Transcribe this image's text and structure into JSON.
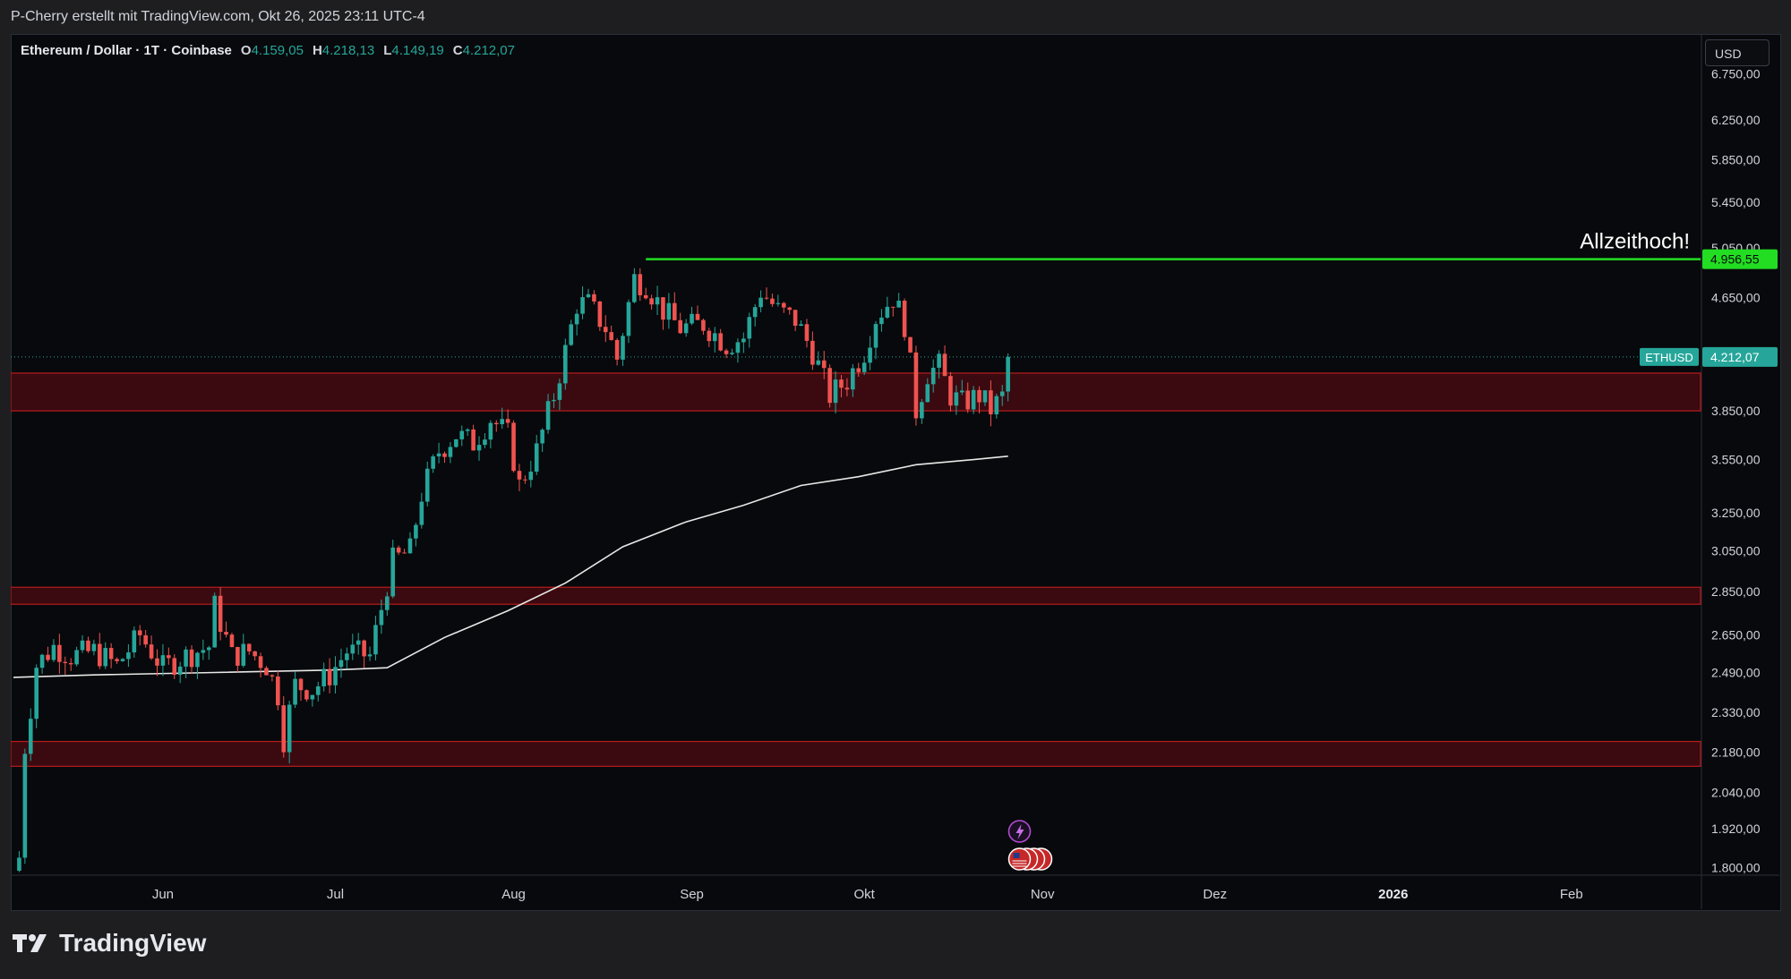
{
  "header": {
    "attribution": "P-Cherry erstellt mit TradingView.com, Okt 26, 2025 23:11 UTC-4"
  },
  "legend": {
    "symbol": "Ethereum / Dollar · 1T · Coinbase",
    "open_label": "O",
    "open": "4.159,05",
    "high_label": "H",
    "high": "4.218,13",
    "low_label": "L",
    "low": "4.149,19",
    "close_label": "C",
    "close": "4.212,07"
  },
  "currency_button": "USD",
  "footer": {
    "brand": "TradingView",
    "logo_icon": "tradingview-logo-icon"
  },
  "colors": {
    "up": "#26a69a",
    "down": "#ef5350",
    "zone_fill": "#3a0a10",
    "zone_edge": "#b71c1c",
    "ath_line": "#22dd22",
    "ma_line": "#e8e8e8",
    "price_tag": "#26a69a"
  },
  "chart_data": {
    "type": "candlestick",
    "symbol": "ETHUSD",
    "timeframe": "1T",
    "y_scale": "log",
    "y_ticks": [
      "6.750,00",
      "6.250,00",
      "5.850,00",
      "5.450,00",
      "5.050,00",
      "4.650,00",
      "3.850,00",
      "3.550,00",
      "3.250,00",
      "3.050,00",
      "2.850,00",
      "2.650,00",
      "2.490,00",
      "2.330,00",
      "2.180,00",
      "2.040,00",
      "1.920,00",
      "1.800,00"
    ],
    "x_ticks": [
      {
        "label": "Jun",
        "date": "2025-06-01"
      },
      {
        "label": "Jul",
        "date": "2025-07-01"
      },
      {
        "label": "Aug",
        "date": "2025-08-01"
      },
      {
        "label": "Sep",
        "date": "2025-09-01"
      },
      {
        "label": "Okt",
        "date": "2025-10-01"
      },
      {
        "label": "Nov",
        "date": "2025-11-01"
      },
      {
        "label": "Dez",
        "date": "2025-12-01"
      },
      {
        "label": "2026",
        "date": "2026-01-01",
        "bold": true
      },
      {
        "label": "Feb",
        "date": "2026-02-01"
      }
    ],
    "x_range": [
      "2025-05-06",
      "2026-02-25"
    ],
    "y_range": [
      1790,
      7000
    ],
    "close_path": [
      [
        "2025-05-07",
        1830
      ],
      [
        "2025-05-08",
        2200
      ],
      [
        "2025-05-09",
        2350
      ],
      [
        "2025-05-10",
        2520
      ],
      [
        "2025-05-13",
        2600
      ],
      [
        "2025-05-16",
        2560
      ],
      [
        "2025-05-20",
        2580
      ],
      [
        "2025-05-24",
        2520
      ],
      [
        "2025-05-28",
        2650
      ],
      [
        "2025-06-01",
        2510
      ],
      [
        "2025-06-05",
        2560
      ],
      [
        "2025-06-09",
        2600
      ],
      [
        "2025-06-10",
        2780
      ],
      [
        "2025-06-13",
        2560
      ],
      [
        "2025-06-16",
        2580
      ],
      [
        "2025-06-19",
        2520
      ],
      [
        "2025-06-21",
        2400
      ],
      [
        "2025-06-22",
        2230
      ],
      [
        "2025-06-24",
        2440
      ],
      [
        "2025-06-27",
        2420
      ],
      [
        "2025-06-30",
        2480
      ],
      [
        "2025-07-03",
        2580
      ],
      [
        "2025-07-07",
        2560
      ],
      [
        "2025-07-09",
        2770
      ],
      [
        "2025-07-11",
        3000
      ],
      [
        "2025-07-14",
        3050
      ],
      [
        "2025-07-16",
        3350
      ],
      [
        "2025-07-19",
        3600
      ],
      [
        "2025-07-22",
        3700
      ],
      [
        "2025-07-25",
        3650
      ],
      [
        "2025-07-28",
        3800
      ],
      [
        "2025-07-31",
        3700
      ],
      [
        "2025-08-02",
        3400
      ],
      [
        "2025-08-05",
        3600
      ],
      [
        "2025-08-08",
        3950
      ],
      [
        "2025-08-10",
        4250
      ],
      [
        "2025-08-12",
        4600
      ],
      [
        "2025-08-14",
        4600
      ],
      [
        "2025-08-17",
        4420
      ],
      [
        "2025-08-19",
        4200
      ],
      [
        "2025-08-22",
        4800
      ],
      [
        "2025-08-24",
        4750
      ],
      [
        "2025-08-27",
        4550
      ],
      [
        "2025-08-30",
        4420
      ],
      [
        "2025-09-03",
        4450
      ],
      [
        "2025-09-07",
        4300
      ],
      [
        "2025-09-10",
        4350
      ],
      [
        "2025-09-13",
        4700
      ],
      [
        "2025-09-16",
        4550
      ],
      [
        "2025-09-19",
        4480
      ],
      [
        "2025-09-22",
        4250
      ],
      [
        "2025-09-25",
        3950
      ],
      [
        "2025-09-28",
        4050
      ],
      [
        "2025-10-01",
        4250
      ],
      [
        "2025-10-03",
        4500
      ],
      [
        "2025-10-06",
        4650
      ],
      [
        "2025-10-08",
        4450
      ],
      [
        "2025-10-10",
        3850
      ],
      [
        "2025-10-12",
        4100
      ],
      [
        "2025-10-14",
        4150
      ],
      [
        "2025-10-16",
        3950
      ],
      [
        "2025-10-18",
        3900
      ],
      [
        "2025-10-21",
        3950
      ],
      [
        "2025-10-23",
        3860
      ],
      [
        "2025-10-25",
        3940
      ],
      [
        "2025-10-26",
        4212
      ]
    ],
    "ma_path": [
      [
        "2025-05-06",
        2470
      ],
      [
        "2025-05-20",
        2480
      ],
      [
        "2025-06-10",
        2490
      ],
      [
        "2025-06-30",
        2500
      ],
      [
        "2025-07-10",
        2510
      ],
      [
        "2025-07-20",
        2640
      ],
      [
        "2025-07-31",
        2760
      ],
      [
        "2025-08-10",
        2890
      ],
      [
        "2025-08-20",
        3070
      ],
      [
        "2025-08-31",
        3200
      ],
      [
        "2025-09-10",
        3290
      ],
      [
        "2025-09-20",
        3400
      ],
      [
        "2025-09-30",
        3450
      ],
      [
        "2025-10-10",
        3520
      ],
      [
        "2025-10-20",
        3550
      ],
      [
        "2025-10-26",
        3570
      ]
    ],
    "zones": [
      {
        "low": 3850,
        "high": 4100
      },
      {
        "low": 2790,
        "high": 2870
      },
      {
        "low": 2130,
        "high": 2220
      }
    ],
    "annotations": {
      "ath_text": "Allzeithoch!",
      "ath_value": 4956.55,
      "ath_label": "4.956,55",
      "ath_start": "2025-08-24",
      "last_price_label": "4.212,07",
      "last_price_value": 4212.07,
      "symbol_tag": "ETHUSD"
    },
    "events": {
      "icons": [
        "lightning-icon",
        "us-flag-icon"
      ],
      "date": "2025-10-28"
    }
  }
}
